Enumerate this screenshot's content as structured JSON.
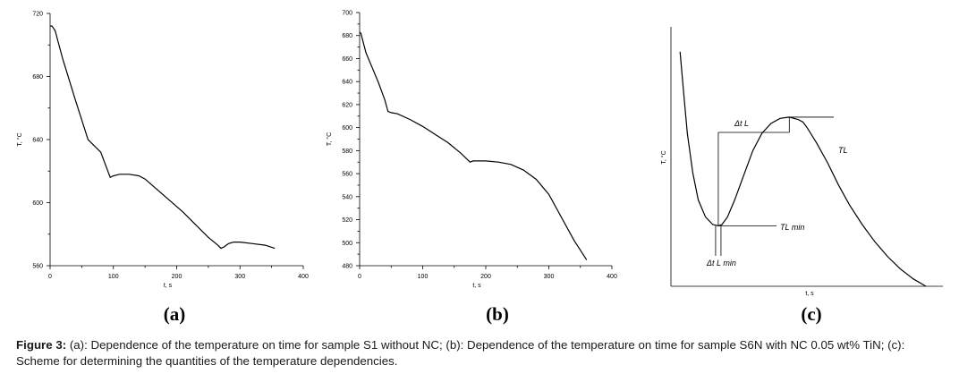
{
  "chart_data": [
    {
      "type": "line",
      "panel_label": "(a)",
      "xlabel": "t, s",
      "ylabel": "T, °C",
      "xlim": [
        0,
        400
      ],
      "ylim": [
        560,
        720
      ],
      "x_ticks": [
        0,
        100,
        200,
        300,
        400
      ],
      "y_ticks": [
        560,
        600,
        640,
        680,
        720
      ],
      "series": [
        {
          "x": [
            0,
            3,
            8,
            12,
            20,
            40,
            60,
            80,
            95,
            100,
            110,
            125,
            140,
            150,
            170,
            190,
            210,
            230,
            250,
            265,
            270,
            275,
            282,
            290,
            300,
            320,
            340,
            355
          ],
          "y": [
            712,
            712,
            709,
            703,
            691,
            665,
            640,
            632,
            616,
            617,
            618,
            618,
            617,
            615,
            608,
            601,
            594,
            586,
            578,
            573,
            571,
            572,
            574,
            575,
            575,
            574,
            573,
            571
          ]
        }
      ]
    },
    {
      "type": "line",
      "panel_label": "(b)",
      "xlabel": "t, s",
      "ylabel": "T, °C",
      "xlim": [
        0,
        400
      ],
      "ylim": [
        480,
        700
      ],
      "x_ticks": [
        0,
        100,
        200,
        300,
        400
      ],
      "y_ticks": [
        480,
        500,
        520,
        540,
        560,
        580,
        600,
        620,
        640,
        660,
        680,
        700
      ],
      "series": [
        {
          "x": [
            0,
            2,
            10,
            20,
            30,
            40,
            45,
            50,
            60,
            80,
            100,
            120,
            140,
            160,
            175,
            180,
            190,
            200,
            220,
            240,
            260,
            280,
            300,
            320,
            340,
            360
          ],
          "y": [
            683,
            682,
            665,
            652,
            639,
            624,
            614,
            613,
            612,
            607,
            601,
            594,
            587,
            578,
            570,
            571,
            571,
            571,
            570,
            568,
            563,
            555,
            542,
            522,
            502,
            485
          ]
        }
      ]
    },
    {
      "type": "line",
      "panel_label": "(c)",
      "xlabel": "t, s",
      "ylabel": "T, °C",
      "annotations": [
        "Δt L",
        "TL",
        "TL min",
        "Δt L min"
      ],
      "series": [
        {
          "x": [
            10,
            14,
            18,
            24,
            30,
            38,
            46,
            52,
            56,
            62,
            70,
            80,
            90,
            100,
            110,
            120,
            130,
            140,
            145,
            150,
            160,
            172,
            184,
            196,
            210,
            224,
            238,
            252,
            266,
            280
          ],
          "y": [
            95,
            78,
            62,
            46,
            35,
            28,
            25,
            24.5,
            25,
            28,
            35,
            45,
            55,
            62,
            66,
            68,
            68.5,
            67.5,
            66.5,
            64,
            58,
            50,
            41,
            33,
            25,
            18,
            12,
            7,
            3,
            0
          ]
        }
      ]
    }
  ],
  "caption": {
    "label": "Figure 3:",
    "text": " (a): Dependence of the temperature on time for sample S1 without NC; (b): Dependence of the temperature on time for sample S6N with NC 0.05 wt% TiN; (c): Scheme for determining the quantities of the temperature dependencies."
  }
}
